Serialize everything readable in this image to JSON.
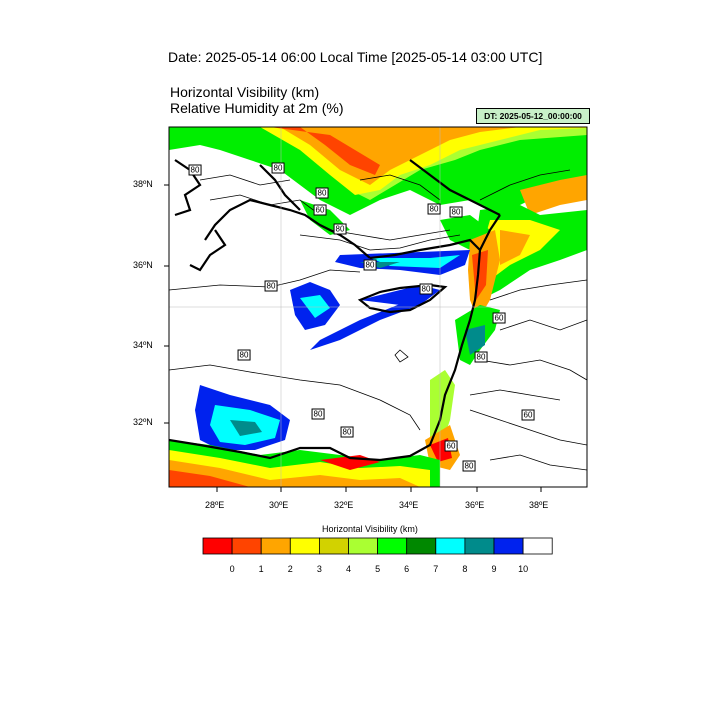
{
  "header": {
    "date_title": "Date: 2025-05-14  06:00 Local Time [2025-05-14  03:00 UTC]",
    "title_line1": "Horizontal Visibility   (km)",
    "title_line2": "Relative Humidity at 2m   (%)",
    "dt_badge": "DT: 2025-05-12_00:00:00"
  },
  "map": {
    "lon_ticks": [
      "28ºE",
      "30ºE",
      "32ºE",
      "34ºE",
      "36ºE",
      "38ºE"
    ],
    "lat_ticks": [
      "38ºN",
      "36ºN",
      "34ºN",
      "32ºN"
    ],
    "contour_labels": [
      "80",
      "80",
      "80",
      "60",
      "80",
      "80",
      "80",
      "80",
      "80",
      "80",
      "80",
      "60",
      "80",
      "80",
      "80",
      "60",
      "60",
      "80"
    ],
    "colors": {
      "land_low_vis_red": "#ff0000",
      "coast": "#000000"
    }
  },
  "colorbar": {
    "title": "Horizontal Visibility  (km)",
    "colors": [
      "#ff0000",
      "#ff4400",
      "#ffa500",
      "#ffff00",
      "#d2d200",
      "#aaff32",
      "#00ff00",
      "#008800",
      "#00ffff",
      "#008b8b",
      "#0022ee",
      "#ffffff"
    ],
    "labels": [
      "0",
      "1",
      "2",
      "3",
      "4",
      "5",
      "6",
      "7",
      "8",
      "9",
      "10"
    ]
  }
}
